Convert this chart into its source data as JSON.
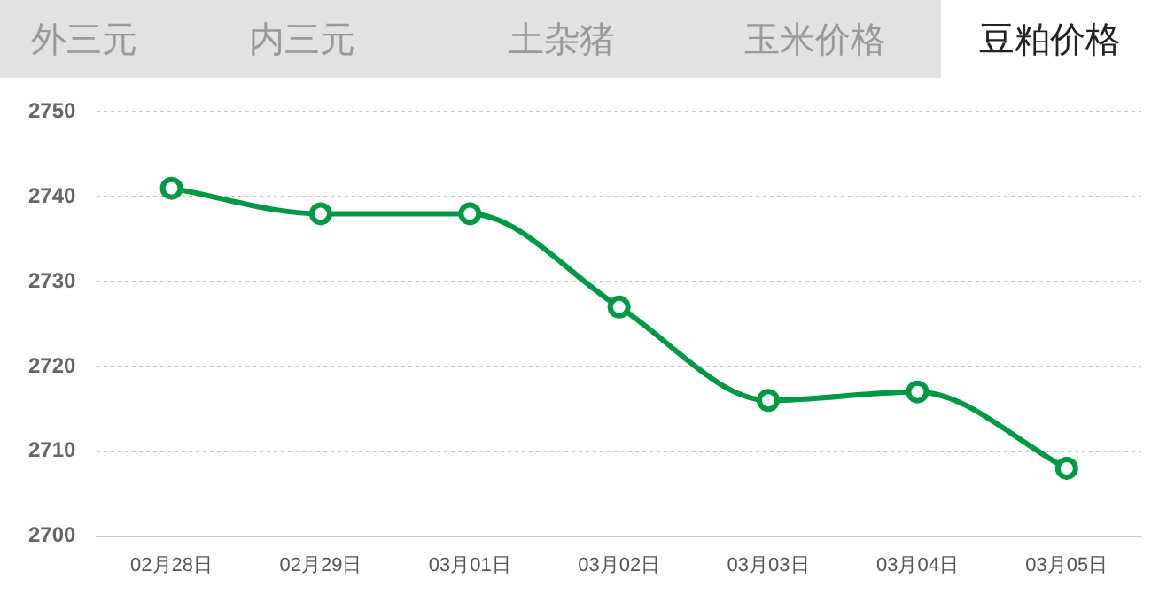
{
  "chart_data": {
    "type": "line",
    "title": "豆粕价格",
    "annotations": [
      "外三元",
      "内三元",
      "土杂猪",
      "玉米价格"
    ],
    "categories": [
      "02月28日",
      "02月29日",
      "03月01日",
      "03月02日",
      "03月03日",
      "03月04日",
      "03月05日"
    ],
    "series": [
      {
        "color": "#009944",
        "values": [
          2741,
          2738,
          2738,
          2727,
          2716,
          2717,
          2708
        ]
      }
    ],
    "ylim": [
      2700,
      2750
    ],
    "yticks": [
      2700,
      2710,
      2720,
      2730,
      2740,
      2750
    ],
    "grid": "y",
    "marker": "circle",
    "line_style": "solid",
    "legend": false
  }
}
